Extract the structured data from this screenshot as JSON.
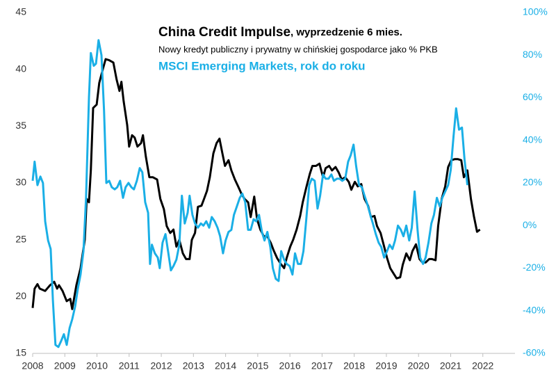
{
  "chart_data": {
    "type": "line",
    "title": "China Credit Impulse",
    "title_suffix": ", wyprzedzenie 6 mies.",
    "subtitle": "Nowy kredyt publiczny i prywatny w chińskiej gospodarce jako % PKB",
    "xlim": [
      2008,
      2023
    ],
    "xticks": [
      2008,
      2009,
      2010,
      2011,
      2012,
      2013,
      2014,
      2015,
      2016,
      2017,
      2018,
      2019,
      2020,
      2021,
      2022
    ],
    "ylim": [
      15,
      45
    ],
    "yticks": [
      15,
      20,
      25,
      30,
      35,
      40,
      45
    ],
    "y2lim": [
      -60,
      100
    ],
    "y2ticks": [
      {
        "value": -60,
        "label": "-60%"
      },
      {
        "value": -40,
        "label": "-40%"
      },
      {
        "value": -20,
        "label": "-20%"
      },
      {
        "value": 0,
        "label": "0%"
      },
      {
        "value": 20,
        "label": "20%"
      },
      {
        "value": 40,
        "label": "40%"
      },
      {
        "value": 60,
        "label": "60%"
      },
      {
        "value": 80,
        "label": "80%"
      },
      {
        "value": 100,
        "label": "100%"
      }
    ],
    "grid": false,
    "series": [
      {
        "name": "China Credit Impulse",
        "color": "#000000",
        "axis": "y",
        "x": [
          2008.0,
          2008.06,
          2008.15,
          2008.22,
          2008.39,
          2008.54,
          2008.67,
          2008.76,
          2008.82,
          2008.93,
          2009.06,
          2009.17,
          2009.23,
          2009.36,
          2009.49,
          2009.62,
          2009.68,
          2009.75,
          2009.81,
          2009.88,
          2009.99,
          2010.07,
          2010.18,
          2010.27,
          2010.38,
          2010.51,
          2010.61,
          2010.7,
          2010.76,
          2010.83,
          2010.94,
          2011.0,
          2011.09,
          2011.17,
          2011.26,
          2011.37,
          2011.43,
          2011.52,
          2011.63,
          2011.74,
          2011.87,
          2011.97,
          2012.08,
          2012.17,
          2012.28,
          2012.38,
          2012.47,
          2012.56,
          2012.67,
          2012.77,
          2012.88,
          2012.95,
          2013.05,
          2013.14,
          2013.25,
          2013.33,
          2013.42,
          2013.51,
          2013.62,
          2013.72,
          2013.81,
          2013.9,
          2013.98,
          2014.09,
          2014.18,
          2014.29,
          2014.39,
          2014.5,
          2014.59,
          2014.7,
          2014.78,
          2014.89,
          2014.98,
          2015.08,
          2015.19,
          2015.3,
          2015.41,
          2015.49,
          2015.6,
          2015.71,
          2015.82,
          2015.9,
          2016.01,
          2016.1,
          2016.21,
          2016.32,
          2016.4,
          2016.51,
          2016.62,
          2016.7,
          2016.81,
          2016.92,
          2017.03,
          2017.11,
          2017.22,
          2017.31,
          2017.42,
          2017.52,
          2017.61,
          2017.72,
          2017.83,
          2017.91,
          2018.02,
          2018.11,
          2018.22,
          2018.32,
          2018.43,
          2018.52,
          2018.63,
          2018.71,
          2018.82,
          2018.93,
          2019.02,
          2019.12,
          2019.23,
          2019.32,
          2019.43,
          2019.51,
          2019.62,
          2019.73,
          2019.81,
          2019.92,
          2020.03,
          2020.12,
          2020.22,
          2020.33,
          2020.42,
          2020.53,
          2020.61,
          2020.72,
          2020.83,
          2020.92,
          2021.02,
          2021.13,
          2021.22,
          2021.33,
          2021.41,
          2021.52,
          2021.63,
          2021.72,
          2021.82,
          2021.91
        ],
        "values": [
          19.0,
          20.7,
          21.1,
          20.7,
          20.5,
          21.0,
          21.3,
          20.7,
          21.0,
          20.5,
          19.6,
          19.8,
          18.9,
          21.0,
          22.5,
          25.0,
          28.6,
          28.3,
          31.1,
          36.6,
          36.9,
          38.8,
          40.0,
          40.9,
          40.8,
          40.6,
          39.1,
          38.1,
          38.9,
          37.2,
          35.1,
          33.2,
          34.2,
          34.0,
          33.2,
          33.5,
          34.2,
          32.3,
          30.5,
          30.5,
          30.3,
          28.6,
          27.7,
          26.2,
          25.6,
          25.9,
          24.4,
          25.0,
          23.8,
          23.3,
          23.3,
          25.0,
          25.6,
          27.9,
          28.0,
          28.6,
          29.3,
          30.5,
          32.6,
          33.5,
          33.9,
          32.6,
          31.5,
          32.0,
          31.1,
          30.3,
          29.7,
          29.0,
          28.6,
          28.3,
          27.0,
          28.8,
          26.8,
          25.9,
          25.3,
          25.3,
          24.7,
          24.1,
          23.4,
          22.9,
          22.5,
          23.4,
          24.4,
          25.0,
          25.9,
          27.1,
          28.3,
          29.6,
          30.8,
          31.5,
          31.5,
          31.7,
          30.5,
          31.3,
          31.5,
          31.1,
          31.4,
          30.9,
          30.3,
          30.5,
          30.1,
          29.4,
          30.1,
          29.7,
          29.9,
          28.6,
          28.0,
          27.0,
          27.1,
          26.2,
          25.6,
          24.4,
          23.4,
          22.5,
          22.0,
          21.6,
          21.7,
          22.8,
          23.8,
          23.2,
          24.0,
          24.6,
          23.3,
          23.0,
          23.0,
          23.3,
          23.3,
          23.2,
          26.2,
          28.6,
          29.7,
          31.4,
          32.0,
          32.1,
          32.1,
          32.0,
          30.5,
          31.1,
          28.6,
          27.1,
          25.7,
          25.9
        ]
      },
      {
        "name": "MSCI Emerging Markets, rok do roku",
        "color": "#1aafe6",
        "axis": "y2",
        "x": [
          2008.0,
          2008.06,
          2008.15,
          2008.24,
          2008.32,
          2008.39,
          2008.48,
          2008.56,
          2008.63,
          2008.71,
          2008.8,
          2008.89,
          2008.97,
          2009.06,
          2009.15,
          2009.23,
          2009.32,
          2009.4,
          2009.49,
          2009.58,
          2009.66,
          2009.75,
          2009.81,
          2009.9,
          2009.97,
          2010.05,
          2010.14,
          2010.22,
          2010.29,
          2010.38,
          2010.46,
          2010.55,
          2010.63,
          2010.72,
          2010.81,
          2010.89,
          2010.98,
          2011.07,
          2011.15,
          2011.24,
          2011.33,
          2011.41,
          2011.5,
          2011.59,
          2011.65,
          2011.71,
          2011.8,
          2011.89,
          2011.95,
          2012.04,
          2012.13,
          2012.21,
          2012.3,
          2012.38,
          2012.47,
          2012.56,
          2012.64,
          2012.73,
          2012.82,
          2012.88,
          2012.97,
          2013.05,
          2013.14,
          2013.23,
          2013.31,
          2013.4,
          2013.49,
          2013.57,
          2013.66,
          2013.75,
          2013.83,
          2013.92,
          2014.0,
          2014.09,
          2014.18,
          2014.26,
          2014.35,
          2014.44,
          2014.52,
          2014.61,
          2014.7,
          2014.78,
          2014.87,
          2014.95,
          2015.04,
          2015.13,
          2015.21,
          2015.3,
          2015.39,
          2015.47,
          2015.56,
          2015.65,
          2015.73,
          2015.82,
          2015.9,
          2015.99,
          2016.08,
          2016.16,
          2016.25,
          2016.34,
          2016.42,
          2016.51,
          2016.6,
          2016.68,
          2016.77,
          2016.86,
          2016.94,
          2017.03,
          2017.11,
          2017.2,
          2017.29,
          2017.37,
          2017.46,
          2017.55,
          2017.63,
          2017.72,
          2017.81,
          2017.89,
          2017.98,
          2018.06,
          2018.15,
          2018.24,
          2018.32,
          2018.41,
          2018.5,
          2018.58,
          2018.67,
          2018.76,
          2018.84,
          2018.93,
          2019.02,
          2019.1,
          2019.19,
          2019.27,
          2019.36,
          2019.45,
          2019.53,
          2019.62,
          2019.71,
          2019.79,
          2019.88,
          2019.97,
          2020.05,
          2020.14,
          2020.22,
          2020.31,
          2020.4,
          2020.48,
          2020.57,
          2020.66,
          2020.74,
          2020.83,
          2020.92,
          2021.0,
          2021.09,
          2021.17,
          2021.26,
          2021.35,
          2021.43,
          2021.52
        ],
        "values": [
          21,
          30,
          19,
          23,
          20,
          2,
          -7,
          -11,
          -35,
          -56,
          -57,
          -54,
          -51,
          -56,
          -48,
          -44,
          -38,
          -30,
          -23,
          -12,
          13,
          60,
          81,
          75,
          76,
          87,
          80,
          54,
          20,
          21,
          18,
          17,
          18,
          21,
          13,
          18,
          20,
          18,
          17,
          21,
          27,
          25,
          11,
          6,
          -18,
          -9,
          -13,
          -15,
          -20,
          -8,
          -4,
          -12,
          -21,
          -19,
          -16,
          -9,
          14,
          1,
          6,
          14,
          5,
          1,
          -1,
          1,
          0,
          2,
          -1,
          4,
          2,
          -1,
          -5,
          -13,
          -7,
          -3,
          -2,
          5,
          9,
          13,
          15,
          11,
          -2,
          -2,
          3,
          2,
          5,
          -3,
          -7,
          -3,
          -10,
          -20,
          -25,
          -26,
          -12,
          -16,
          -18,
          -19,
          -23,
          -13,
          -18,
          -18,
          -12,
          3,
          19,
          22,
          21,
          8,
          14,
          24,
          22,
          22,
          24,
          21,
          22,
          22,
          21,
          22,
          30,
          33,
          38,
          28,
          19,
          18,
          14,
          10,
          5,
          1,
          -4,
          -8,
          -10,
          -15,
          -12,
          -9,
          -11,
          -7,
          0,
          -2,
          -5,
          0,
          -7,
          -1,
          16,
          -2,
          -15,
          -18,
          -15,
          -8,
          1,
          5,
          13,
          9,
          13,
          16,
          19,
          26,
          42,
          55,
          45,
          46,
          31,
          19
        ]
      }
    ]
  }
}
